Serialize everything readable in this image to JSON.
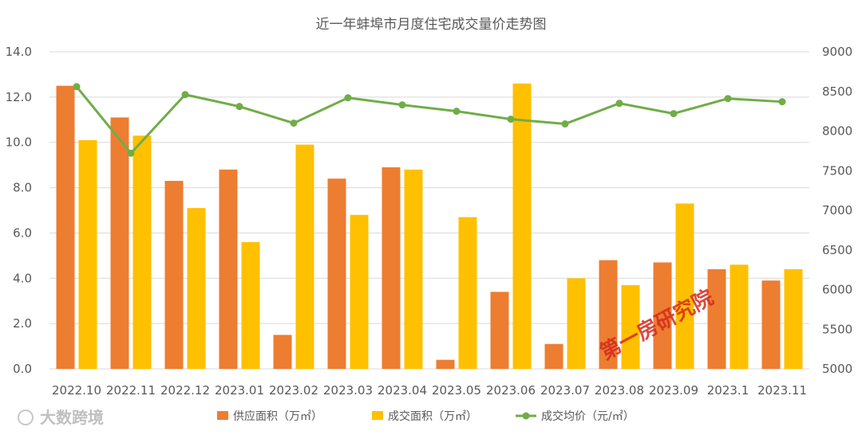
{
  "chart_data": {
    "type": "bar",
    "title": "近一年蚌埠市月度住宅成交量价走势图",
    "categories": [
      "2022.10",
      "2022.11",
      "2022.12",
      "2023.01",
      "2023.02",
      "2023.03",
      "2023.04",
      "2023.05",
      "2023.06",
      "2023.07",
      "2023.08",
      "2023.09",
      "2023.1",
      "2023.11"
    ],
    "series": [
      {
        "name": "供应面积（万㎡）",
        "kind": "bar",
        "axis": "left",
        "color": "#ed7d31",
        "values": [
          12.5,
          11.1,
          8.3,
          8.8,
          1.5,
          8.4,
          8.9,
          0.4,
          3.4,
          1.1,
          4.8,
          4.7,
          4.4,
          3.9
        ]
      },
      {
        "name": "成交面积（万㎡）",
        "kind": "bar",
        "axis": "left",
        "color": "#ffc000",
        "values": [
          10.1,
          10.3,
          7.1,
          5.6,
          9.9,
          6.8,
          8.8,
          6.7,
          12.6,
          4.0,
          3.7,
          7.3,
          4.6,
          4.4
        ]
      },
      {
        "name": "成交均价（元/㎡）",
        "kind": "line",
        "axis": "right",
        "color": "#70ad47",
        "values": [
          8560,
          7720,
          8460,
          8310,
          8100,
          8420,
          8330,
          8250,
          8150,
          8090,
          8350,
          8220,
          8410,
          8370
        ]
      }
    ],
    "y_left": {
      "min": 0,
      "max": 14,
      "step": 2,
      "tick_labels": [
        "0.0",
        "2.0",
        "4.0",
        "6.0",
        "8.0",
        "10.0",
        "12.0",
        "14.0"
      ]
    },
    "y_right": {
      "min": 5000,
      "max": 9000,
      "step": 500,
      "tick_labels": [
        "5000",
        "5500",
        "6000",
        "6500",
        "7000",
        "7500",
        "8000",
        "8500",
        "9000"
      ]
    },
    "grid": true,
    "legend_position": "bottom"
  },
  "watermarks": {
    "red_stamp": "第一房研究院",
    "logo_text": "大数跨境"
  }
}
